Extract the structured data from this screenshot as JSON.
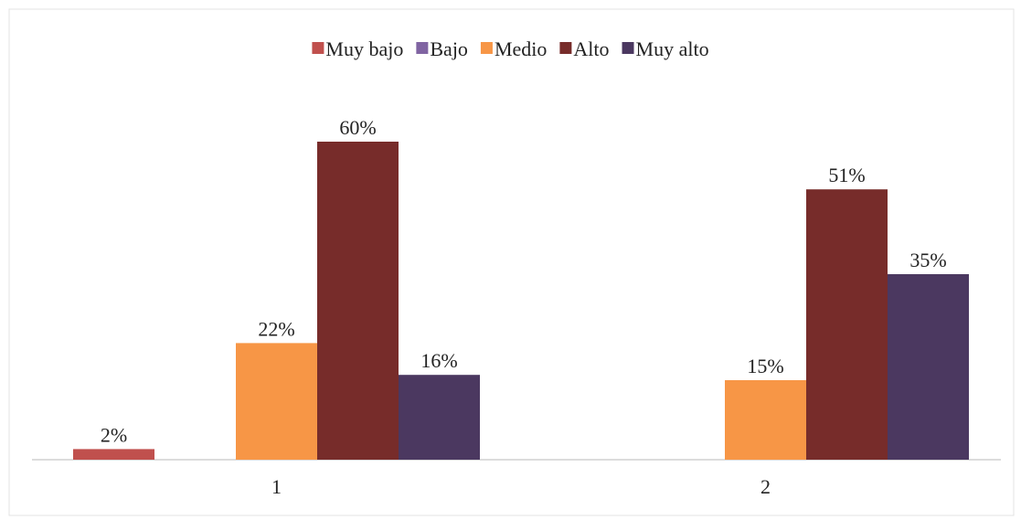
{
  "chart_data": {
    "type": "bar",
    "categories": [
      "1",
      "2"
    ],
    "series": [
      {
        "name": "Muy bajo",
        "color": "#c0504d",
        "values": [
          2,
          null
        ],
        "value_labels": [
          "2%",
          null
        ]
      },
      {
        "name": "Bajo",
        "color": "#8064a2",
        "values": [
          null,
          null
        ],
        "value_labels": [
          null,
          null
        ]
      },
      {
        "name": "Medio",
        "color": "#f79646",
        "values": [
          22,
          15
        ],
        "value_labels": [
          "22%",
          "15%"
        ]
      },
      {
        "name": "Alto",
        "color": "#772c2a",
        "values": [
          60,
          51
        ],
        "value_labels": [
          "60%",
          "51%"
        ]
      },
      {
        "name": "Muy alto",
        "color": "#4b3860",
        "values": [
          16,
          35
        ],
        "value_labels": [
          "16%",
          "35%"
        ]
      }
    ],
    "legend": "top"
  }
}
